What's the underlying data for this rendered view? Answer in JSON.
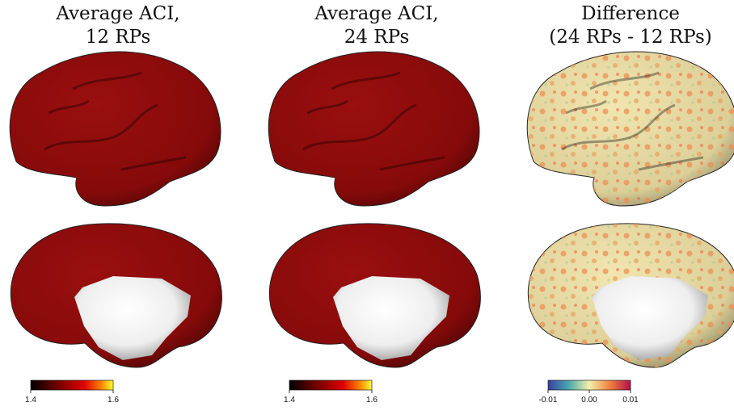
{
  "panels": [
    {
      "title": [
        "Average ACI,",
        "12 RPs"
      ],
      "colorbar": {
        "range": [
          1.4,
          1.6
        ],
        "ticks": [
          1.4,
          1.6
        ]
      }
    },
    {
      "title": [
        "Average ACI,",
        "24 RPs"
      ],
      "colorbar": {
        "range": [
          1.4,
          1.6
        ],
        "ticks": [
          1.4,
          1.6
        ]
      }
    },
    {
      "title": [
        "Difference",
        "(24 RPs - 12 RPs)"
      ],
      "colorbar": {
        "range": [
          -0.01,
          0.01
        ],
        "ticks": [
          -0.01,
          {
            "value": 0,
            "label": "0.00"
          },
          0.01
        ]
      }
    }
  ]
}
